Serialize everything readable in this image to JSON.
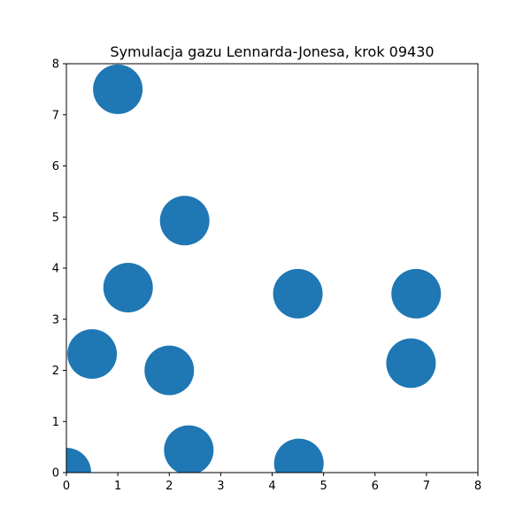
{
  "chart_data": {
    "type": "scatter",
    "title": "Symulacja gazu Lennarda-Jonesa, krok 09430",
    "xlabel": "",
    "ylabel": "",
    "xlim": [
      0,
      8
    ],
    "ylim": [
      0,
      8
    ],
    "xticks": [
      "0",
      "1",
      "2",
      "3",
      "4",
      "5",
      "6",
      "7",
      "8"
    ],
    "yticks": [
      "0",
      "1",
      "2",
      "3",
      "4",
      "5",
      "6",
      "7",
      "8"
    ],
    "grid": false,
    "marker_color": "#1f77b4",
    "points": [
      {
        "x": 1.0,
        "y": 7.5
      },
      {
        "x": 2.3,
        "y": 4.93
      },
      {
        "x": 1.2,
        "y": 3.62
      },
      {
        "x": 4.5,
        "y": 3.5
      },
      {
        "x": 6.8,
        "y": 3.5
      },
      {
        "x": 0.5,
        "y": 2.32
      },
      {
        "x": 2.0,
        "y": 2.0
      },
      {
        "x": 6.7,
        "y": 2.14
      },
      {
        "x": 2.38,
        "y": 0.44
      },
      {
        "x": 4.52,
        "y": 0.18
      },
      {
        "x": 0.0,
        "y": 0.0
      }
    ]
  }
}
